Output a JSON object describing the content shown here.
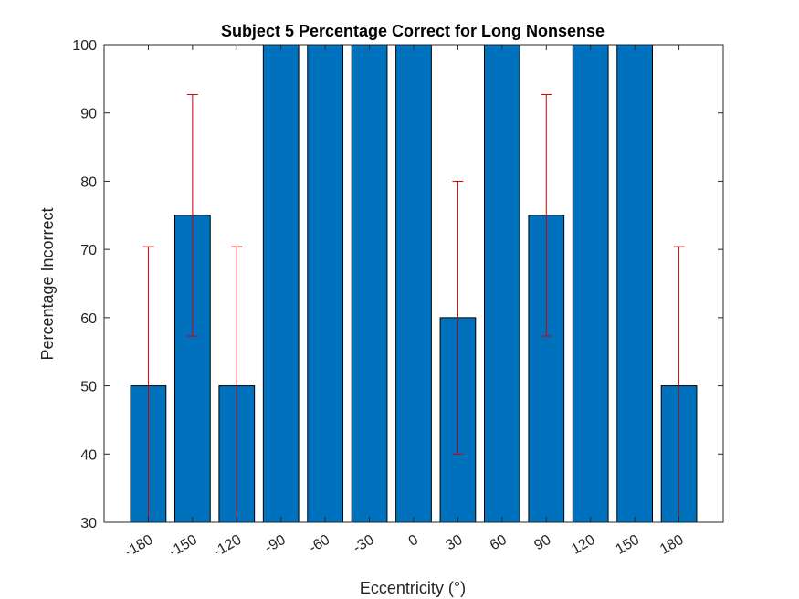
{
  "colors": {
    "bar": "#0072BD",
    "error_bar": "#D00000",
    "axis": "#262626",
    "background": "#ffffff"
  },
  "chart_data": {
    "type": "bar",
    "title": "Subject 5 Percentage Correct for Long Nonsense",
    "xlabel": "Eccentricity (°)",
    "ylabel": "Percentage Incorrect",
    "categories": [
      "-180",
      "-150",
      "-120",
      "-90",
      "-60",
      "-30",
      "0",
      "30",
      "60",
      "90",
      "120",
      "150",
      "180"
    ],
    "values": [
      50,
      75,
      50,
      100,
      100,
      100,
      100,
      60,
      100,
      75,
      100,
      100,
      50
    ],
    "error_low": [
      20.4,
      17.7,
      20.4,
      0,
      0,
      0,
      0,
      20,
      0,
      17.7,
      0,
      0,
      20.4
    ],
    "error_high": [
      20.4,
      17.7,
      20.4,
      0,
      0,
      0,
      0,
      20,
      0,
      17.7,
      0,
      0,
      20.4
    ],
    "ylim": [
      30,
      100
    ],
    "yticks": [
      30,
      40,
      50,
      60,
      70,
      80,
      90,
      100
    ],
    "grid": false,
    "legend": "none"
  }
}
